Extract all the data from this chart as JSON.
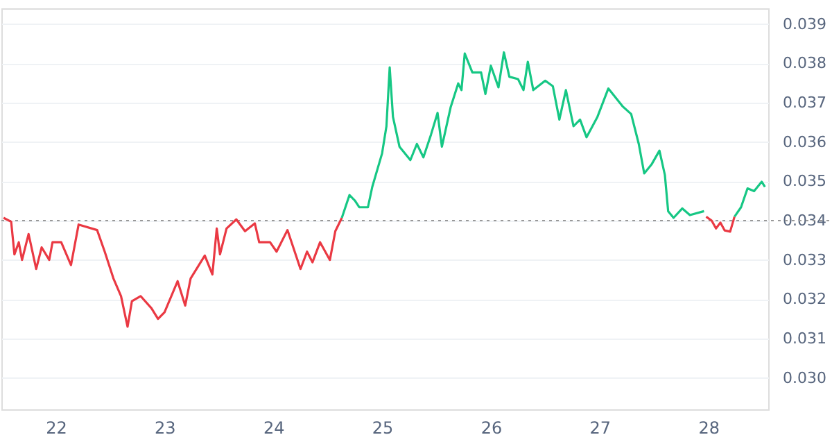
{
  "chart_data": {
    "type": "line",
    "xlim": [
      21.5,
      28.55
    ],
    "ylim": [
      0.0292,
      0.0394
    ],
    "xticks": [
      22,
      23,
      24,
      25,
      26,
      27,
      28
    ],
    "yticks": [
      {
        "value": 0.03,
        "label": "0.030"
      },
      0.031,
      0.032,
      0.033,
      0.034,
      0.035,
      0.036,
      0.037,
      0.038,
      0.039
    ],
    "grid": "y",
    "marker": "none",
    "line_style": "solid",
    "ref_lines": [
      {
        "axis": "y",
        "value": 0.034,
        "color": "#999999",
        "line_style": "dotted"
      }
    ],
    "series": [
      {
        "color": "#ea3943",
        "x": [
          21.52,
          21.59,
          21.62,
          21.66,
          21.69,
          21.75,
          21.82,
          21.87,
          21.94,
          21.97,
          22.05,
          22.14,
          22.21,
          22.38,
          22.45,
          22.53,
          22.6,
          22.66,
          22.7,
          22.78,
          22.88,
          22.94,
          23.0,
          23.12,
          23.19,
          23.24,
          23.37,
          23.44,
          23.48,
          23.51,
          23.57,
          23.66,
          23.74,
          23.83,
          23.87,
          23.97,
          24.03,
          24.13,
          24.25,
          24.31,
          24.36,
          24.43,
          24.52,
          24.57,
          24.63,
          24.65,
          27.98,
          28.03,
          28.07,
          28.11,
          28.15,
          28.2,
          28.24
        ],
        "values": [
          0.03407,
          0.03397,
          0.03314,
          0.03345,
          0.033,
          0.03366,
          0.03277,
          0.03332,
          0.033,
          0.03345,
          0.03345,
          0.03287,
          0.0339,
          0.03376,
          0.03321,
          0.03253,
          0.03208,
          0.0313,
          0.03195,
          0.03208,
          0.03177,
          0.0315,
          0.03167,
          0.03246,
          0.03184,
          0.03253,
          0.03311,
          0.03263,
          0.0338,
          0.03314,
          0.0338,
          0.03403,
          0.03373,
          0.03393,
          0.03345,
          0.03345,
          0.03321,
          0.03376,
          0.03277,
          0.03321,
          0.03294,
          0.03345,
          0.033,
          0.03373,
          0.03407,
          null,
          0.0341,
          0.034,
          0.0338,
          0.03395,
          0.03375,
          0.03372,
          0.0341
        ]
      },
      {
        "color": "#16c784",
        "x": [
          24.63,
          24.7,
          24.75,
          24.79,
          24.87,
          24.91,
          25.0,
          25.04,
          25.07,
          25.1,
          25.16,
          25.26,
          25.32,
          25.38,
          25.45,
          25.51,
          25.55,
          25.63,
          25.7,
          25.73,
          25.76,
          25.83,
          25.91,
          25.95,
          26.0,
          26.07,
          26.12,
          26.17,
          26.25,
          26.3,
          26.34,
          26.39,
          26.5,
          26.57,
          26.63,
          26.69,
          26.76,
          26.82,
          26.88,
          26.98,
          27.08,
          27.21,
          27.29,
          27.36,
          27.41,
          27.48,
          27.55,
          27.6,
          27.63,
          27.68,
          27.76,
          27.83,
          27.96,
          28.0,
          28.24,
          28.3,
          28.36,
          28.42,
          28.49,
          28.52
        ],
        "values": [
          0.03407,
          0.03465,
          0.03451,
          0.03434,
          0.03434,
          0.03486,
          0.03571,
          0.0364,
          0.0379,
          0.03664,
          0.03588,
          0.03554,
          0.03595,
          0.03561,
          0.03619,
          0.03674,
          0.03588,
          0.03688,
          0.03749,
          0.03732,
          0.03825,
          0.03777,
          0.03777,
          0.03722,
          0.03794,
          0.03739,
          0.03828,
          0.03766,
          0.0376,
          0.03732,
          0.03804,
          0.03732,
          0.03756,
          0.03742,
          0.03657,
          0.03732,
          0.0364,
          0.03657,
          0.03612,
          0.03664,
          0.03736,
          0.03691,
          0.03671,
          0.03595,
          0.0352,
          0.03544,
          0.03578,
          0.03516,
          0.03424,
          0.03407,
          0.03431,
          0.03414,
          0.03424,
          null,
          0.0341,
          0.03434,
          0.03482,
          0.03475,
          0.03499,
          0.03486
        ]
      }
    ]
  }
}
